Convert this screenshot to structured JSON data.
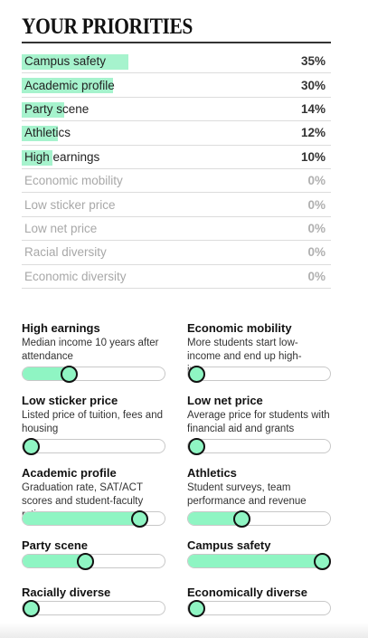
{
  "title": "YOUR PRIORITIES",
  "priorities": [
    {
      "label": "Campus safety",
      "value": "35%",
      "share": 0.35
    },
    {
      "label": "Academic profile",
      "value": "30%",
      "share": 0.3
    },
    {
      "label": "Party scene",
      "value": "14%",
      "share": 0.14
    },
    {
      "label": "Athletics",
      "value": "12%",
      "share": 0.12
    },
    {
      "label": "High earnings",
      "value": "10%",
      "share": 0.1
    },
    {
      "label": "Economic mobility",
      "value": "0%",
      "share": 0
    },
    {
      "label": "Low sticker price",
      "value": "0%",
      "share": 0
    },
    {
      "label": "Low net price",
      "value": "0%",
      "share": 0
    },
    {
      "label": "Racial diversity",
      "value": "0%",
      "share": 0
    },
    {
      "label": "Economic diversity",
      "value": "0%",
      "share": 0
    }
  ],
  "sliders": [
    {
      "label": "High earnings",
      "description": "Median income 10 years after attendance",
      "level": 0.3
    },
    {
      "label": "Economic mobility",
      "description": "More students start low-income and end up high-income",
      "level": 0
    },
    {
      "label": "Low sticker price",
      "description": "Listed price of tuition, fees and housing",
      "level": 0
    },
    {
      "label": "Low net price",
      "description": "Average price for students with financial aid and grants",
      "level": 0
    },
    {
      "label": "Academic profile",
      "description": "Graduation rate, SAT/ACT scores and student-faculty ratio",
      "level": 0.86
    },
    {
      "label": "Athletics",
      "description": "Student surveys, team performance and revenue",
      "level": 0.36
    },
    {
      "label": "Party scene",
      "description": "",
      "level": 0.43
    },
    {
      "label": "Campus safety",
      "description": "",
      "level": 1.0
    },
    {
      "label": "Racially diverse",
      "description": "",
      "level": 0
    },
    {
      "label": "Economically diverse",
      "description": "",
      "level": 0
    }
  ],
  "colors": {
    "accent": "#8ff5c3",
    "highlight": "#a6f3cd",
    "text": "#121212",
    "muted": "#a8a8a8"
  }
}
